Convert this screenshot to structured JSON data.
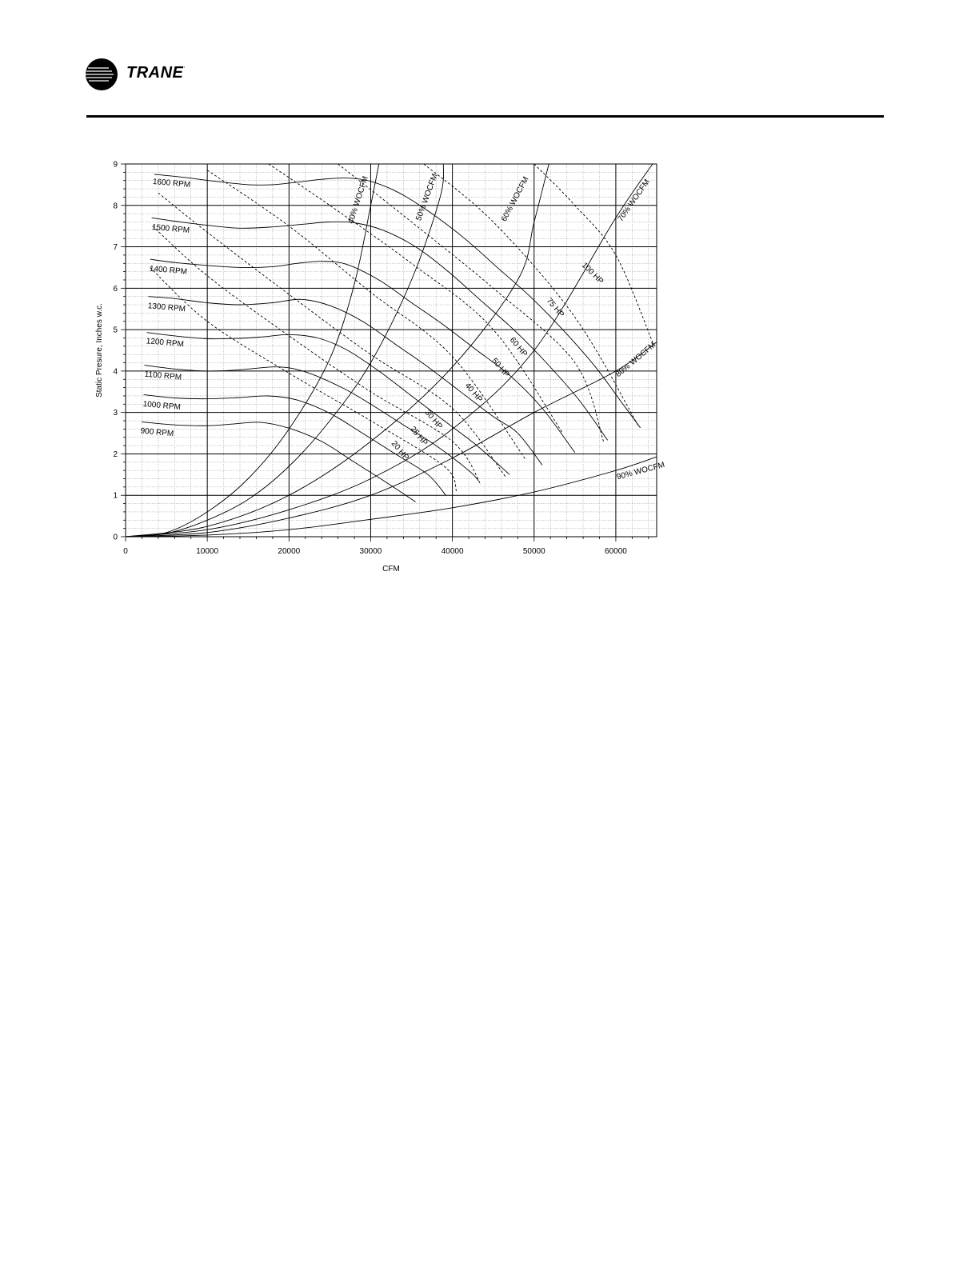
{
  "brand": {
    "name": "TRANE",
    "mark": "·",
    "logo_icon": "trane-circle-logo-icon"
  },
  "chart_data": {
    "type": "line",
    "xlabel": "CFM",
    "ylabel": "Static Presure, Inches w.c.",
    "xlim": [
      0,
      65000
    ],
    "ylim": [
      0,
      9
    ],
    "xticks": [
      0,
      10000,
      20000,
      30000,
      40000,
      50000,
      60000
    ],
    "yticks": [
      0,
      1,
      2,
      3,
      4,
      5,
      6,
      7,
      8,
      9
    ],
    "grid": true,
    "rpm_curves": [
      {
        "label": "900 RPM",
        "points": [
          [
            2000,
            2.77
          ],
          [
            6000,
            2.7
          ],
          [
            10000,
            2.68
          ],
          [
            13000,
            2.72
          ],
          [
            16500,
            2.76
          ],
          [
            20000,
            2.62
          ],
          [
            24000,
            2.3
          ],
          [
            28000,
            1.8
          ],
          [
            32000,
            1.3
          ],
          [
            35500,
            0.84
          ]
        ]
      },
      {
        "label": "1000 RPM",
        "points": [
          [
            2200,
            3.43
          ],
          [
            6000,
            3.35
          ],
          [
            10000,
            3.33
          ],
          [
            14000,
            3.36
          ],
          [
            17500,
            3.4
          ],
          [
            21000,
            3.3
          ],
          [
            25000,
            2.98
          ],
          [
            29000,
            2.5
          ],
          [
            33000,
            2.0
          ],
          [
            37000,
            1.5
          ],
          [
            39200,
            1.0
          ]
        ]
      },
      {
        "label": "1100 RPM",
        "points": [
          [
            2300,
            4.14
          ],
          [
            6000,
            4.05
          ],
          [
            10000,
            4.0
          ],
          [
            14000,
            4.03
          ],
          [
            18500,
            4.1
          ],
          [
            22000,
            3.98
          ],
          [
            26500,
            3.6
          ],
          [
            30000,
            3.2
          ],
          [
            34000,
            2.7
          ],
          [
            38000,
            2.2
          ],
          [
            42000,
            1.6
          ],
          [
            43200,
            1.35
          ]
        ]
      },
      {
        "label": "1200 RPM",
        "points": [
          [
            2600,
            4.93
          ],
          [
            6000,
            4.85
          ],
          [
            10000,
            4.78
          ],
          [
            14000,
            4.79
          ],
          [
            17000,
            4.83
          ],
          [
            20000,
            4.88
          ],
          [
            23500,
            4.8
          ],
          [
            27000,
            4.52
          ],
          [
            31000,
            4.0
          ],
          [
            35000,
            3.4
          ],
          [
            39000,
            2.8
          ],
          [
            43000,
            2.2
          ],
          [
            47000,
            1.5
          ]
        ]
      },
      {
        "label": "1300 RPM",
        "points": [
          [
            2800,
            5.8
          ],
          [
            6000,
            5.75
          ],
          [
            10000,
            5.65
          ],
          [
            14000,
            5.6
          ],
          [
            18000,
            5.65
          ],
          [
            21500,
            5.73
          ],
          [
            25000,
            5.58
          ],
          [
            29000,
            5.2
          ],
          [
            33000,
            4.65
          ],
          [
            37000,
            4.1
          ],
          [
            41000,
            3.5
          ],
          [
            45000,
            2.9
          ],
          [
            48000,
            2.5
          ],
          [
            51000,
            1.73
          ]
        ]
      },
      {
        "label": "1400 RPM",
        "points": [
          [
            3000,
            6.7
          ],
          [
            6000,
            6.62
          ],
          [
            10000,
            6.55
          ],
          [
            14000,
            6.5
          ],
          [
            18000,
            6.52
          ],
          [
            21000,
            6.6
          ],
          [
            24000,
            6.65
          ],
          [
            27000,
            6.58
          ],
          [
            31000,
            6.2
          ],
          [
            35000,
            5.65
          ],
          [
            39000,
            5.1
          ],
          [
            43000,
            4.5
          ],
          [
            47000,
            3.9
          ],
          [
            51000,
            3.1
          ],
          [
            55000,
            2.03
          ]
        ]
      },
      {
        "label": "1500 RPM",
        "points": [
          [
            3200,
            7.7
          ],
          [
            6000,
            7.62
          ],
          [
            10000,
            7.52
          ],
          [
            14000,
            7.45
          ],
          [
            18000,
            7.48
          ],
          [
            22000,
            7.55
          ],
          [
            25000,
            7.6
          ],
          [
            28000,
            7.58
          ],
          [
            31500,
            7.4
          ],
          [
            35500,
            7.0
          ],
          [
            39500,
            6.4
          ],
          [
            43500,
            5.7
          ],
          [
            47500,
            5.0
          ],
          [
            51500,
            4.2
          ],
          [
            55500,
            3.3
          ],
          [
            59000,
            2.33
          ]
        ]
      },
      {
        "label": "1600 RPM",
        "points": [
          [
            3500,
            8.75
          ],
          [
            7000,
            8.68
          ],
          [
            11000,
            8.58
          ],
          [
            15000,
            8.5
          ],
          [
            18000,
            8.5
          ],
          [
            21000,
            8.56
          ],
          [
            24000,
            8.63
          ],
          [
            27000,
            8.66
          ],
          [
            30000,
            8.58
          ],
          [
            33500,
            8.3
          ],
          [
            37500,
            7.8
          ],
          [
            41500,
            7.2
          ],
          [
            45500,
            6.5
          ],
          [
            49500,
            5.8
          ],
          [
            53500,
            5.0
          ],
          [
            57500,
            4.1
          ],
          [
            60500,
            3.3
          ],
          [
            63000,
            2.63
          ]
        ]
      }
    ],
    "hp_lines": [
      {
        "label": "20 HP",
        "points": [
          [
            3000,
            6.5
          ],
          [
            10000,
            5.2
          ],
          [
            20000,
            3.95
          ],
          [
            30000,
            2.8
          ],
          [
            39000,
            1.7
          ],
          [
            40500,
            1.1
          ]
        ]
      },
      {
        "label": "25 HP",
        "points": [
          [
            3300,
            7.5
          ],
          [
            10000,
            6.3
          ],
          [
            20000,
            4.85
          ],
          [
            30000,
            3.5
          ],
          [
            40000,
            2.3
          ],
          [
            43500,
            1.25
          ]
        ]
      },
      {
        "label": "30 HP",
        "points": [
          [
            4000,
            8.3
          ],
          [
            10000,
            7.35
          ],
          [
            20000,
            5.85
          ],
          [
            30000,
            4.4
          ],
          [
            40000,
            3.1
          ],
          [
            46500,
            1.45
          ]
        ]
      },
      {
        "label": "40 HP",
        "points": [
          [
            10000,
            8.85
          ],
          [
            20000,
            7.5
          ],
          [
            30000,
            5.9
          ],
          [
            40000,
            4.35
          ],
          [
            49000,
            1.85
          ]
        ]
      },
      {
        "label": "50 HP",
        "points": [
          [
            17500,
            9.0
          ],
          [
            25000,
            8.0
          ],
          [
            35000,
            6.6
          ],
          [
            45000,
            5.0
          ],
          [
            53500,
            2.5
          ]
        ]
      },
      {
        "label": "60 HP",
        "points": [
          [
            26000,
            9.0
          ],
          [
            35000,
            7.6
          ],
          [
            45000,
            6.0
          ],
          [
            55000,
            4.2
          ],
          [
            58500,
            2.3
          ]
        ]
      },
      {
        "label": "75 HP",
        "points": [
          [
            36500,
            9.0
          ],
          [
            45000,
            7.6
          ],
          [
            55000,
            5.3
          ],
          [
            62700,
            2.7
          ]
        ]
      },
      {
        "label": "100 HP",
        "points": [
          [
            50000,
            9.0
          ],
          [
            55000,
            8.0
          ],
          [
            60000,
            6.8
          ],
          [
            64500,
            4.7
          ]
        ]
      }
    ],
    "wocfm_curves": [
      {
        "label": "40% WOCFM",
        "points": [
          [
            0,
            0
          ],
          [
            5000,
            0.1
          ],
          [
            10000,
            0.6
          ],
          [
            15000,
            1.4
          ],
          [
            20000,
            2.6
          ],
          [
            25000,
            4.3
          ],
          [
            28000,
            6.1
          ],
          [
            30000,
            8.0
          ],
          [
            31000,
            9.0
          ]
        ]
      },
      {
        "label": "50% WOCFM",
        "points": [
          [
            0,
            0
          ],
          [
            5000,
            0.08
          ],
          [
            10000,
            0.4
          ],
          [
            15000,
            0.9
          ],
          [
            20000,
            1.7
          ],
          [
            25000,
            2.8
          ],
          [
            30000,
            4.2
          ],
          [
            35000,
            6.2
          ],
          [
            38500,
            8.2
          ],
          [
            38900,
            9.0
          ]
        ]
      },
      {
        "label": "60% WOCFM",
        "points": [
          [
            0,
            0
          ],
          [
            10000,
            0.25
          ],
          [
            20000,
            1.0
          ],
          [
            30000,
            2.3
          ],
          [
            40000,
            4.1
          ],
          [
            48000,
            6.2
          ],
          [
            50000,
            7.6
          ],
          [
            51800,
            9.0
          ]
        ]
      },
      {
        "label": "70% WOCFM",
        "points": [
          [
            0,
            0
          ],
          [
            10000,
            0.17
          ],
          [
            20000,
            0.65
          ],
          [
            30000,
            1.4
          ],
          [
            40000,
            2.6
          ],
          [
            50000,
            4.5
          ],
          [
            60000,
            7.7
          ],
          [
            64500,
            9.0
          ]
        ]
      },
      {
        "label": "80% WOCFM",
        "points": [
          [
            0,
            0
          ],
          [
            10000,
            0.1
          ],
          [
            20000,
            0.45
          ],
          [
            30000,
            1.0
          ],
          [
            40000,
            1.9
          ],
          [
            50000,
            3.0
          ],
          [
            60000,
            4.0
          ],
          [
            65000,
            4.7
          ]
        ]
      },
      {
        "label": "90% WOCFM",
        "points": [
          [
            0,
            0
          ],
          [
            10000,
            0.04
          ],
          [
            20000,
            0.17
          ],
          [
            30000,
            0.42
          ],
          [
            40000,
            0.7
          ],
          [
            50000,
            1.08
          ],
          [
            60000,
            1.6
          ],
          [
            65000,
            1.93
          ]
        ]
      }
    ]
  }
}
